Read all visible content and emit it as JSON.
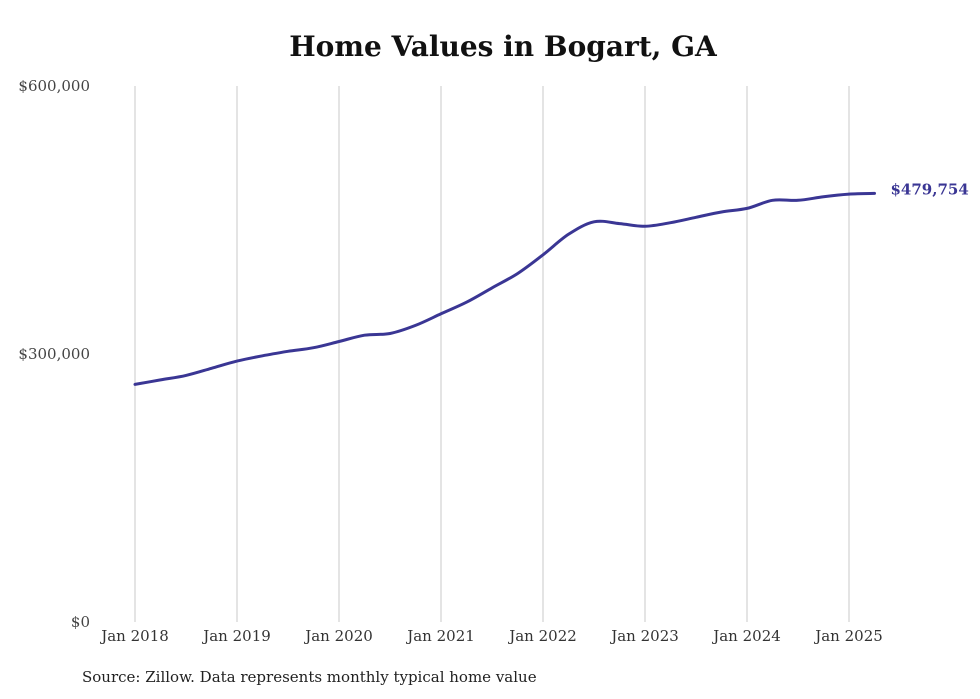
{
  "title": "Home Values in Bogart, GA",
  "source_note": "Source: Zillow. Data represents monthly typical home value",
  "colors": {
    "line": "#3a3694",
    "grid": "#c8c8c8",
    "axis": "#999999"
  },
  "chart_data": {
    "type": "line",
    "title": "Home Values in Bogart, GA",
    "xlabel": "",
    "ylabel": "",
    "ylim": [
      0,
      600000
    ],
    "xlim": [
      "2018-01",
      "2025-04"
    ],
    "y_ticks": [
      {
        "value": 0,
        "label": "$0"
      },
      {
        "value": 300000,
        "label": "$300,000"
      },
      {
        "value": 600000,
        "label": "$600,000"
      }
    ],
    "x_ticks": [
      {
        "date": "2018-01",
        "label": "Jan 2018"
      },
      {
        "date": "2019-01",
        "label": "Jan 2019"
      },
      {
        "date": "2020-01",
        "label": "Jan 2020"
      },
      {
        "date": "2021-01",
        "label": "Jan 2021"
      },
      {
        "date": "2022-01",
        "label": "Jan 2022"
      },
      {
        "date": "2023-01",
        "label": "Jan 2023"
      },
      {
        "date": "2024-01",
        "label": "Jan 2024"
      },
      {
        "date": "2025-01",
        "label": "Jan 2025"
      }
    ],
    "grid": {
      "vertical": true,
      "horizontal": false
    },
    "end_label": "$479,754",
    "series": [
      {
        "points": [
          {
            "date": "2018-01",
            "value": 266000
          },
          {
            "date": "2018-04",
            "value": 271000
          },
          {
            "date": "2018-07",
            "value": 276000
          },
          {
            "date": "2018-10",
            "value": 284000
          },
          {
            "date": "2019-01",
            "value": 292000
          },
          {
            "date": "2019-04",
            "value": 298000
          },
          {
            "date": "2019-07",
            "value": 303000
          },
          {
            "date": "2019-10",
            "value": 307000
          },
          {
            "date": "2020-01",
            "value": 314000
          },
          {
            "date": "2020-04",
            "value": 321000
          },
          {
            "date": "2020-07",
            "value": 323000
          },
          {
            "date": "2020-10",
            "value": 332000
          },
          {
            "date": "2021-01",
            "value": 345000
          },
          {
            "date": "2021-04",
            "value": 358000
          },
          {
            "date": "2021-07",
            "value": 374000
          },
          {
            "date": "2021-10",
            "value": 390000
          },
          {
            "date": "2022-01",
            "value": 411000
          },
          {
            "date": "2022-04",
            "value": 434000
          },
          {
            "date": "2022-07",
            "value": 448000
          },
          {
            "date": "2022-10",
            "value": 446000
          },
          {
            "date": "2023-01",
            "value": 443000
          },
          {
            "date": "2023-04",
            "value": 447000
          },
          {
            "date": "2023-07",
            "value": 453000
          },
          {
            "date": "2023-10",
            "value": 459000
          },
          {
            "date": "2024-01",
            "value": 463000
          },
          {
            "date": "2024-04",
            "value": 472000
          },
          {
            "date": "2024-07",
            "value": 472000
          },
          {
            "date": "2024-10",
            "value": 476000
          },
          {
            "date": "2025-01",
            "value": 479000
          },
          {
            "date": "2025-04",
            "value": 479754
          }
        ]
      }
    ]
  }
}
